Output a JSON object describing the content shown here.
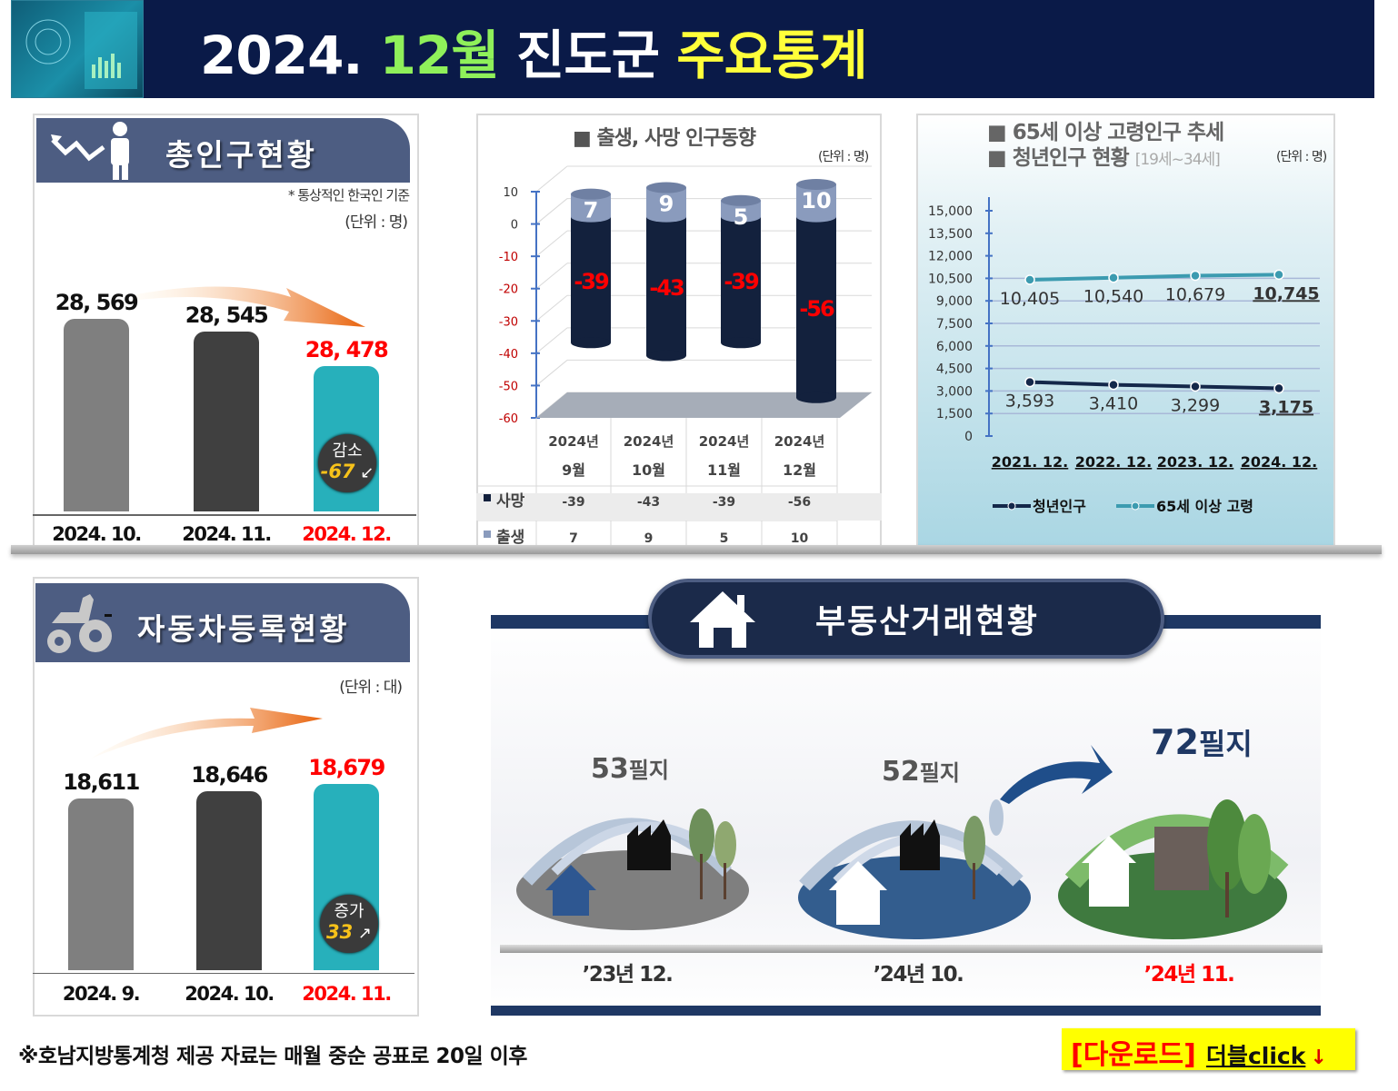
{
  "header": {
    "year": "2024.",
    "month": "12월",
    "region": "진도군",
    "subject": "주요통계"
  },
  "population": {
    "title": "총인구현황",
    "note": "* 통상적인 한국인 기준",
    "unit": "(단위 : 명)",
    "badge_label": "감소",
    "badge_value": "-67",
    "chart_data": {
      "type": "bar",
      "categories": [
        "2024. 10.",
        "2024. 11.",
        "2024. 12."
      ],
      "values": [
        28569,
        28545,
        28478
      ],
      "value_labels": [
        "28, 569",
        "28, 545",
        "28, 478"
      ],
      "ylim": [
        28200,
        28600
      ],
      "colors": [
        "#7f7f7f",
        "#404040",
        "#27b0bb"
      ],
      "highlight_color": "#ff0000"
    }
  },
  "births_deaths": {
    "title": "■ 출생, 사망 인구동향",
    "unit": "(단위 : 명)",
    "chart_data": {
      "type": "bar",
      "categories": [
        "2024년 9월",
        "2024년 10월",
        "2024년 11월",
        "2024년 12월"
      ],
      "category_lines": [
        [
          "2024년",
          "9월"
        ],
        [
          "2024년",
          "10월"
        ],
        [
          "2024년",
          "11월"
        ],
        [
          "2024년",
          "12월"
        ]
      ],
      "series": [
        {
          "name": "사망",
          "values": [
            -39,
            -43,
            -39,
            -56
          ],
          "color": "#13213d"
        },
        {
          "name": "출생",
          "values": [
            7,
            9,
            5,
            10
          ],
          "color": "#8a9bbd"
        }
      ],
      "ylim": [
        -60,
        10
      ],
      "yticks": [
        10,
        0,
        -10,
        -20,
        -30,
        -40,
        -50,
        -60
      ],
      "grid": true,
      "legend": "table"
    }
  },
  "aging": {
    "title1": "■ 65세 이상 고령인구 추세",
    "title2": "■ 청년인구 현황",
    "title2_sub": "[19세~34세]",
    "unit": "(단위 : 명)",
    "chart_data": {
      "type": "line",
      "categories": [
        "2021. 12.",
        "2022. 12.",
        "2023. 12.",
        "2024. 12."
      ],
      "series": [
        {
          "name": "청년인구",
          "values": [
            3593,
            3410,
            3299,
            3175
          ],
          "labels": [
            "3,593",
            "3,410",
            "3,299",
            "3,175"
          ],
          "color": "#14284a"
        },
        {
          "name": "65세 이상 고령",
          "values": [
            10405,
            10540,
            10679,
            10745
          ],
          "labels": [
            "10,405",
            "10,540",
            "10,679",
            "10,745"
          ],
          "color": "#3c9bb0"
        }
      ],
      "ylim": [
        0,
        15000
      ],
      "yticks": [
        "0",
        "1,500",
        "3,000",
        "4,500",
        "6,000",
        "7,500",
        "9,000",
        "10,500",
        "12,000",
        "13,500",
        "15,000"
      ],
      "grid": true,
      "legend": "bottom"
    }
  },
  "vehicles": {
    "title": "자동차등록현황",
    "unit": "(단위 : 대)",
    "badge_label": "증가",
    "badge_value": "33",
    "chart_data": {
      "type": "bar",
      "categories": [
        "2024. 9.",
        "2024. 10.",
        "2024. 11."
      ],
      "values": [
        18611,
        18646,
        18679
      ],
      "value_labels": [
        "18,611",
        "18,646",
        "18,679"
      ],
      "ylim": [
        17800,
        18700
      ],
      "colors": [
        "#7f7f7f",
        "#404040",
        "#27b0bb"
      ],
      "highlight_color": "#ff0000"
    }
  },
  "real_estate": {
    "title": "부동산거래현황",
    "items": [
      {
        "num": "53",
        "unit": "필지",
        "period": "’23년 12."
      },
      {
        "num": "52",
        "unit": "필지",
        "period": "’24년 10."
      },
      {
        "num": "72",
        "unit": "필지",
        "period": "’24년 11."
      }
    ]
  },
  "footer": {
    "note": "※호남지방통계청 제공 자료는 매월 중순 공표로 20일 이후",
    "download": "[다운로드]",
    "click_prefix": "더블",
    "click_suffix": "click",
    "arrow": "↓"
  }
}
